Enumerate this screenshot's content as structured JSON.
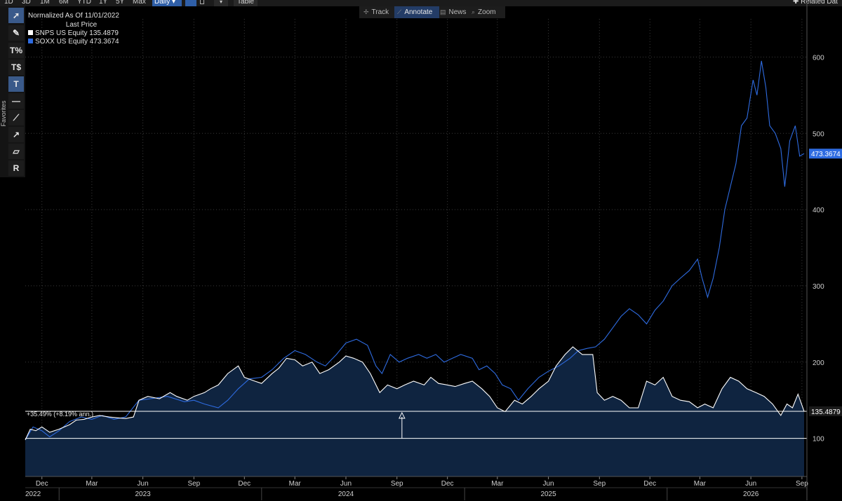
{
  "toolbar": {
    "ranges": [
      "1D",
      "3D",
      "1M",
      "6M",
      "YTD",
      "1Y",
      "5Y",
      "Max"
    ],
    "frequency": "Daily ▾",
    "table_label": "Table",
    "related_label": "✚ Related Dat"
  },
  "modes": [
    {
      "label": "Track",
      "icon": "✢"
    },
    {
      "label": "Annotate",
      "icon": "⟋"
    },
    {
      "label": "News",
      "icon": "▤"
    },
    {
      "label": "Zoom",
      "icon": "⌕"
    }
  ],
  "palette": {
    "favorites_label": "Favorites",
    "tools": [
      "cursor-arrow-icon",
      "pen-icon",
      "percent-line-icon",
      "dollar-line-icon",
      "text-tool-icon",
      "horizontal-line-icon",
      "trendline-icon",
      "ray-line-icon",
      "channel-icon",
      "retracement-icon"
    ]
  },
  "legend": {
    "title": "Normalized As Of 11/01/2022",
    "subtitle": "Last Price",
    "entries": [
      {
        "label": "SNPS US Equity 135.4879",
        "color": "#ffffff"
      },
      {
        "label": "SOXX US Equity 473.3674",
        "color": "#2e6be0"
      }
    ]
  },
  "colors": {
    "snps": "#ffffff",
    "soxx": "#2e6be0",
    "area_fill": "#0f2440",
    "background": "#000000",
    "grid": "#3a3a3a"
  },
  "chart_data": {
    "type": "line",
    "title": "",
    "y_axis_side": "right",
    "ylim": [
      50,
      650
    ],
    "yticks": [
      100,
      200,
      300,
      400,
      500,
      600
    ],
    "x_range": [
      "2022-11-01",
      "2026-09-10"
    ],
    "x_month_ticks": [
      {
        "date": "2022-12-01",
        "label": "Dec"
      },
      {
        "date": "2023-03-01",
        "label": "Mar"
      },
      {
        "date": "2023-06-01",
        "label": "Jun"
      },
      {
        "date": "2023-09-01",
        "label": "Sep"
      },
      {
        "date": "2023-12-01",
        "label": "Dec"
      },
      {
        "date": "2024-03-01",
        "label": "Mar"
      },
      {
        "date": "2024-06-01",
        "label": "Jun"
      },
      {
        "date": "2024-09-01",
        "label": "Sep"
      },
      {
        "date": "2024-12-01",
        "label": "Dec"
      },
      {
        "date": "2025-03-01",
        "label": "Mar"
      },
      {
        "date": "2025-06-01",
        "label": "Jun"
      },
      {
        "date": "2025-09-01",
        "label": "Sep"
      },
      {
        "date": "2025-12-01",
        "label": "Dec"
      },
      {
        "date": "2026-03-01",
        "label": "Mar"
      },
      {
        "date": "2026-06-01",
        "label": "Jun"
      },
      {
        "date": "2026-09-01",
        "label": "Sep"
      }
    ],
    "x_year_labels": [
      {
        "date": "2022-11-15",
        "label": "2022"
      },
      {
        "date": "2023-06-01",
        "label": "2023"
      },
      {
        "date": "2024-06-01",
        "label": "2024"
      },
      {
        "date": "2025-06-01",
        "label": "2025"
      },
      {
        "date": "2026-06-01",
        "label": "2026"
      }
    ],
    "x_year_dividers": [
      "2023-01-01",
      "2024-01-01",
      "2025-01-01",
      "2026-01-01"
    ],
    "grid": true,
    "baseline": 100,
    "reference_line": 135.4879,
    "annotation": "+35.49% (+8.19% ann.)",
    "annotation_date": "2024-09-10",
    "series": [
      {
        "name": "SNPS US Equity",
        "last": 135.4879,
        "last_label": "135.4879",
        "color": "#ffffff",
        "filled": true,
        "points": [
          [
            "2022-11-01",
            98
          ],
          [
            "2022-11-10",
            112
          ],
          [
            "2022-11-20",
            110
          ],
          [
            "2022-12-01",
            115
          ],
          [
            "2022-12-15",
            108
          ],
          [
            "2023-01-01",
            112
          ],
          [
            "2023-01-20",
            118
          ],
          [
            "2023-02-01",
            124
          ],
          [
            "2023-02-15",
            125
          ],
          [
            "2023-03-01",
            128
          ],
          [
            "2023-03-15",
            130
          ],
          [
            "2023-04-01",
            128
          ],
          [
            "2023-04-15",
            127
          ],
          [
            "2023-05-01",
            126
          ],
          [
            "2023-05-15",
            128
          ],
          [
            "2023-05-25",
            150
          ],
          [
            "2023-06-10",
            155
          ],
          [
            "2023-07-01",
            152
          ],
          [
            "2023-07-20",
            160
          ],
          [
            "2023-08-01",
            155
          ],
          [
            "2023-08-20",
            150
          ],
          [
            "2023-09-01",
            155
          ],
          [
            "2023-09-20",
            160
          ],
          [
            "2023-10-01",
            165
          ],
          [
            "2023-10-15",
            170
          ],
          [
            "2023-11-01",
            185
          ],
          [
            "2023-11-20",
            195
          ],
          [
            "2023-12-01",
            180
          ],
          [
            "2023-12-20",
            175
          ],
          [
            "2024-01-01",
            172
          ],
          [
            "2024-01-20",
            185
          ],
          [
            "2024-02-01",
            192
          ],
          [
            "2024-02-15",
            205
          ],
          [
            "2024-03-01",
            203
          ],
          [
            "2024-03-15",
            195
          ],
          [
            "2024-04-01",
            200
          ],
          [
            "2024-04-15",
            185
          ],
          [
            "2024-05-01",
            190
          ],
          [
            "2024-05-20",
            200
          ],
          [
            "2024-06-01",
            208
          ],
          [
            "2024-06-15",
            205
          ],
          [
            "2024-07-01",
            200
          ],
          [
            "2024-07-15",
            185
          ],
          [
            "2024-08-01",
            160
          ],
          [
            "2024-08-15",
            170
          ],
          [
            "2024-09-01",
            165
          ],
          [
            "2024-09-15",
            170
          ],
          [
            "2024-10-01",
            175
          ],
          [
            "2024-10-20",
            170
          ],
          [
            "2024-11-01",
            180
          ],
          [
            "2024-11-15",
            172
          ],
          [
            "2024-12-01",
            170
          ],
          [
            "2024-12-15",
            168
          ],
          [
            "2025-01-01",
            172
          ],
          [
            "2025-01-15",
            175
          ],
          [
            "2025-02-01",
            165
          ],
          [
            "2025-02-15",
            155
          ],
          [
            "2025-03-01",
            140
          ],
          [
            "2025-03-15",
            135
          ],
          [
            "2025-04-01",
            150
          ],
          [
            "2025-04-15",
            145
          ],
          [
            "2025-05-01",
            155
          ],
          [
            "2025-05-15",
            165
          ],
          [
            "2025-06-01",
            175
          ],
          [
            "2025-06-15",
            195
          ],
          [
            "2025-07-01",
            210
          ],
          [
            "2025-07-15",
            220
          ],
          [
            "2025-08-01",
            210
          ],
          [
            "2025-08-20",
            210
          ],
          [
            "2025-08-28",
            160
          ],
          [
            "2025-09-10",
            150
          ],
          [
            "2025-09-25",
            155
          ],
          [
            "2025-10-10",
            150
          ],
          [
            "2025-10-25",
            140
          ],
          [
            "2025-11-10",
            140
          ],
          [
            "2025-11-25",
            175
          ],
          [
            "2025-12-10",
            170
          ],
          [
            "2025-12-25",
            180
          ],
          [
            "2026-01-10",
            155
          ],
          [
            "2026-01-25",
            150
          ],
          [
            "2026-02-10",
            148
          ],
          [
            "2026-02-25",
            140
          ],
          [
            "2026-03-10",
            145
          ],
          [
            "2026-03-25",
            140
          ],
          [
            "2026-04-10",
            165
          ],
          [
            "2026-04-25",
            180
          ],
          [
            "2026-05-10",
            175
          ],
          [
            "2026-05-25",
            165
          ],
          [
            "2026-06-10",
            160
          ],
          [
            "2026-06-25",
            155
          ],
          [
            "2026-07-10",
            145
          ],
          [
            "2026-07-25",
            130
          ],
          [
            "2026-08-05",
            145
          ],
          [
            "2026-08-15",
            140
          ],
          [
            "2026-08-25",
            158
          ],
          [
            "2026-09-05",
            135.4879
          ]
        ]
      },
      {
        "name": "SOXX US Equity",
        "last": 473.3674,
        "last_label": "473.3674",
        "color": "#2e6be0",
        "filled": false,
        "points": [
          [
            "2022-11-01",
            98
          ],
          [
            "2022-11-15",
            115
          ],
          [
            "2022-12-01",
            110
          ],
          [
            "2022-12-15",
            102
          ],
          [
            "2023-01-01",
            110
          ],
          [
            "2023-01-20",
            122
          ],
          [
            "2023-02-10",
            128
          ],
          [
            "2023-03-01",
            125
          ],
          [
            "2023-03-20",
            130
          ],
          [
            "2023-04-10",
            125
          ],
          [
            "2023-05-01",
            128
          ],
          [
            "2023-05-25",
            150
          ],
          [
            "2023-06-15",
            152
          ],
          [
            "2023-07-15",
            155
          ],
          [
            "2023-08-15",
            148
          ],
          [
            "2023-09-01",
            150
          ],
          [
            "2023-09-20",
            145
          ],
          [
            "2023-10-15",
            140
          ],
          [
            "2023-11-01",
            150
          ],
          [
            "2023-11-20",
            165
          ],
          [
            "2023-12-10",
            178
          ],
          [
            "2024-01-01",
            180
          ],
          [
            "2024-01-20",
            190
          ],
          [
            "2024-02-10",
            205
          ],
          [
            "2024-03-01",
            215
          ],
          [
            "2024-03-20",
            210
          ],
          [
            "2024-04-10",
            200
          ],
          [
            "2024-04-25",
            195
          ],
          [
            "2024-05-15",
            210
          ],
          [
            "2024-06-01",
            225
          ],
          [
            "2024-06-20",
            230
          ],
          [
            "2024-07-10",
            222
          ],
          [
            "2024-07-25",
            195
          ],
          [
            "2024-08-05",
            185
          ],
          [
            "2024-08-20",
            210
          ],
          [
            "2024-09-05",
            200
          ],
          [
            "2024-09-20",
            205
          ],
          [
            "2024-10-10",
            210
          ],
          [
            "2024-10-25",
            205
          ],
          [
            "2024-11-10",
            210
          ],
          [
            "2024-11-25",
            200
          ],
          [
            "2024-12-10",
            205
          ],
          [
            "2024-12-25",
            210
          ],
          [
            "2025-01-15",
            205
          ],
          [
            "2025-01-27",
            190
          ],
          [
            "2025-02-10",
            195
          ],
          [
            "2025-02-25",
            185
          ],
          [
            "2025-03-10",
            170
          ],
          [
            "2025-03-25",
            165
          ],
          [
            "2025-04-08",
            150
          ],
          [
            "2025-04-25",
            165
          ],
          [
            "2025-05-15",
            180
          ],
          [
            "2025-06-01",
            188
          ],
          [
            "2025-06-20",
            195
          ],
          [
            "2025-07-10",
            205
          ],
          [
            "2025-07-25",
            215
          ],
          [
            "2025-08-10",
            218
          ],
          [
            "2025-08-25",
            220
          ],
          [
            "2025-09-10",
            230
          ],
          [
            "2025-09-25",
            245
          ],
          [
            "2025-10-10",
            260
          ],
          [
            "2025-10-25",
            270
          ],
          [
            "2025-11-10",
            262
          ],
          [
            "2025-11-25",
            250
          ],
          [
            "2025-12-10",
            268
          ],
          [
            "2025-12-25",
            280
          ],
          [
            "2026-01-10",
            300
          ],
          [
            "2026-01-25",
            310
          ],
          [
            "2026-02-10",
            320
          ],
          [
            "2026-02-25",
            335
          ],
          [
            "2026-03-05",
            310
          ],
          [
            "2026-03-15",
            285
          ],
          [
            "2026-03-25",
            310
          ],
          [
            "2026-04-05",
            350
          ],
          [
            "2026-04-15",
            400
          ],
          [
            "2026-04-25",
            430
          ],
          [
            "2026-05-05",
            460
          ],
          [
            "2026-05-15",
            510
          ],
          [
            "2026-05-25",
            520
          ],
          [
            "2026-06-05",
            570
          ],
          [
            "2026-06-12",
            550
          ],
          [
            "2026-06-20",
            595
          ],
          [
            "2026-06-28",
            560
          ],
          [
            "2026-07-05",
            510
          ],
          [
            "2026-07-15",
            500
          ],
          [
            "2026-07-25",
            480
          ],
          [
            "2026-08-01",
            430
          ],
          [
            "2026-08-10",
            490
          ],
          [
            "2026-08-20",
            510
          ],
          [
            "2026-08-28",
            470
          ],
          [
            "2026-09-05",
            473.3674
          ]
        ]
      }
    ]
  }
}
